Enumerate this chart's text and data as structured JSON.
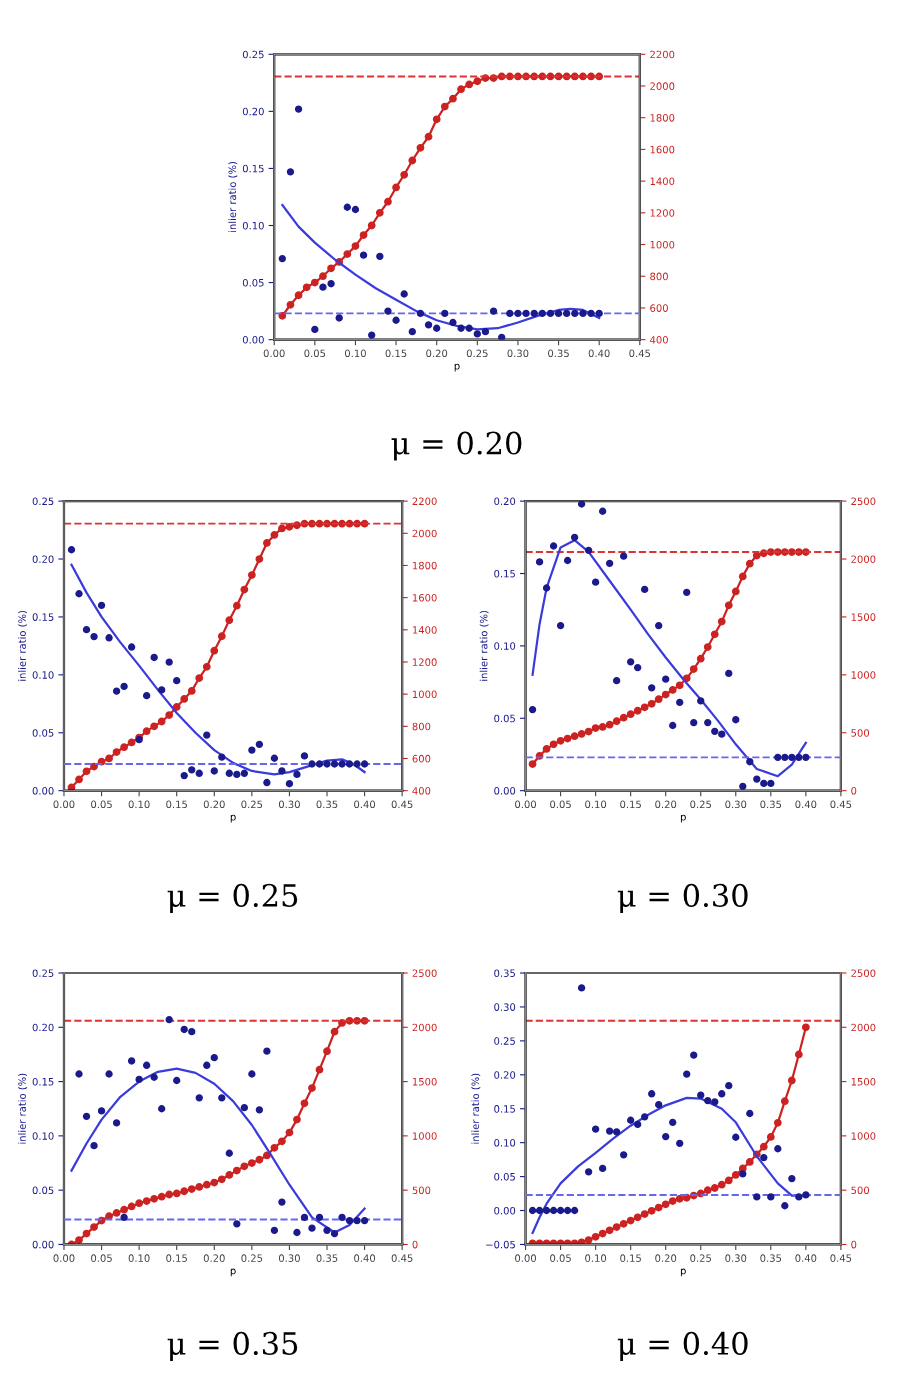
{
  "chart_data": [
    {
      "type": "scatter",
      "title": "μ = 0.20",
      "xlabel": "p",
      "ylabel": "inlier ratio (%)",
      "grid": false,
      "x": [
        0.01,
        0.02,
        0.03,
        0.04,
        0.05,
        0.06,
        0.07,
        0.08,
        0.09,
        0.1,
        0.11,
        0.12,
        0.13,
        0.14,
        0.15,
        0.16,
        0.17,
        0.18,
        0.19,
        0.2,
        0.21,
        0.22,
        0.23,
        0.24,
        0.25,
        0.26,
        0.27,
        0.28,
        0.29,
        0.3,
        0.31,
        0.32,
        0.33,
        0.34,
        0.35,
        0.36,
        0.37,
        0.38,
        0.39,
        0.4
      ],
      "xlim": [
        0,
        0.45
      ],
      "xticks": [
        {
          "value": 0,
          "label": "0.00"
        },
        {
          "value": 0.05,
          "label": "0.05"
        },
        {
          "value": 0.1,
          "label": "0.10"
        },
        {
          "value": 0.15,
          "label": "0.15"
        },
        {
          "value": 0.2,
          "label": "0.20"
        },
        {
          "value": 0.25,
          "label": "0.25"
        },
        {
          "value": 0.3,
          "label": "0.30"
        },
        {
          "value": 0.35,
          "label": "0.35"
        },
        {
          "value": 0.4,
          "label": "0.40"
        },
        {
          "value": 0.45,
          "label": "0.45"
        }
      ],
      "ylim": [
        0,
        0.25
      ],
      "yticks": [
        {
          "value": 0,
          "label": "0.00"
        },
        {
          "value": 0.05,
          "label": "0.05"
        },
        {
          "value": 0.1,
          "label": "0.10"
        },
        {
          "value": 0.15,
          "label": "0.15"
        },
        {
          "value": 0.2,
          "label": "0.20"
        },
        {
          "value": 0.25,
          "label": "0.25"
        }
      ],
      "y2lim": [
        400,
        2200
      ],
      "y2ticks": [
        400,
        600,
        800,
        1000,
        1200,
        1400,
        1600,
        1800,
        2000,
        2200
      ],
      "series": [
        {
          "color": "#1a1a8c",
          "marker": "circle",
          "values": [
            0.071,
            0.147,
            0.202,
            null,
            0.009,
            0.046,
            0.049,
            0.019,
            0.116,
            0.114,
            0.074,
            0.004,
            0.073,
            0.025,
            0.017,
            0.04,
            0.007,
            0.023,
            0.013,
            0.01,
            0.023,
            0.015,
            0.01,
            0.01,
            0.005,
            0.007,
            0.025,
            0.002,
            0.023,
            0.023,
            0.023,
            0.023,
            0.023,
            0.023,
            0.023,
            0.023,
            0.023,
            0.023,
            0.023,
            0.023
          ]
        },
        {
          "type": "line",
          "color": "#3b3bdb",
          "line_style": "solid",
          "x": [
            0.01,
            0.03,
            0.05,
            0.075,
            0.1,
            0.125,
            0.15,
            0.175,
            0.2,
            0.225,
            0.25,
            0.275,
            0.3,
            0.325,
            0.35,
            0.365,
            0.38,
            0.4
          ],
          "values": [
            0.118,
            0.099,
            0.085,
            0.07,
            0.057,
            0.045,
            0.035,
            0.025,
            0.017,
            0.012,
            0.009,
            0.01,
            0.015,
            0.021,
            0.026,
            0.027,
            0.026,
            0.019
          ]
        },
        {
          "type": "line",
          "axis": "y2",
          "color": "#cc2222",
          "marker": "circle",
          "line_style": "solid",
          "values": [
            550,
            620,
            680,
            730,
            760,
            800,
            850,
            890,
            940,
            990,
            1060,
            1120,
            1200,
            1270,
            1360,
            1440,
            1530,
            1610,
            1680,
            1790,
            1870,
            1920,
            1980,
            2010,
            2030,
            2050,
            2050,
            2060,
            2060,
            2060,
            2060,
            2060,
            2060,
            2060,
            2060,
            2060,
            2060,
            2060,
            2060,
            2060
          ]
        }
      ],
      "ref_lines": [
        {
          "axis": "y",
          "value": 0.023,
          "color": "#6666ee",
          "line_style": "dashed"
        },
        {
          "axis": "y2",
          "value": 2060,
          "color": "#dd3333",
          "line_style": "dashed"
        }
      ]
    },
    {
      "type": "scatter",
      "title": "μ = 0.25",
      "xlabel": "p",
      "ylabel": "inlier ratio (%)",
      "grid": false,
      "x": [
        0.01,
        0.02,
        0.03,
        0.04,
        0.05,
        0.06,
        0.07,
        0.08,
        0.09,
        0.1,
        0.11,
        0.12,
        0.13,
        0.14,
        0.15,
        0.16,
        0.17,
        0.18,
        0.19,
        0.2,
        0.21,
        0.22,
        0.23,
        0.24,
        0.25,
        0.26,
        0.27,
        0.28,
        0.29,
        0.3,
        0.31,
        0.32,
        0.33,
        0.34,
        0.35,
        0.36,
        0.37,
        0.38,
        0.39,
        0.4
      ],
      "xlim": [
        0,
        0.45
      ],
      "xticks": [
        {
          "value": 0,
          "label": "0.00"
        },
        {
          "value": 0.05,
          "label": "0.05"
        },
        {
          "value": 0.1,
          "label": "0.10"
        },
        {
          "value": 0.15,
          "label": "0.15"
        },
        {
          "value": 0.2,
          "label": "0.20"
        },
        {
          "value": 0.25,
          "label": "0.25"
        },
        {
          "value": 0.3,
          "label": "0.30"
        },
        {
          "value": 0.35,
          "label": "0.35"
        },
        {
          "value": 0.4,
          "label": "0.40"
        },
        {
          "value": 0.45,
          "label": "0.45"
        }
      ],
      "ylim": [
        0,
        0.25
      ],
      "yticks": [
        {
          "value": 0,
          "label": "0.00"
        },
        {
          "value": 0.05,
          "label": "0.05"
        },
        {
          "value": 0.1,
          "label": "0.10"
        },
        {
          "value": 0.15,
          "label": "0.15"
        },
        {
          "value": 0.2,
          "label": "0.20"
        },
        {
          "value": 0.25,
          "label": "0.25"
        }
      ],
      "y2lim": [
        400,
        2200
      ],
      "y2ticks": [
        400,
        600,
        800,
        1000,
        1200,
        1400,
        1600,
        1800,
        2000,
        2200
      ],
      "series": [
        {
          "color": "#1a1a8c",
          "marker": "circle",
          "values": [
            0.208,
            0.17,
            0.139,
            0.133,
            0.16,
            0.132,
            0.086,
            0.09,
            0.124,
            0.044,
            0.082,
            0.115,
            0.087,
            0.111,
            0.095,
            0.013,
            0.018,
            0.015,
            0.048,
            0.017,
            0.029,
            0.015,
            0.014,
            0.015,
            0.035,
            0.04,
            0.007,
            0.028,
            0.017,
            0.006,
            0.014,
            0.03,
            0.023,
            0.023,
            0.023,
            0.023,
            0.023,
            0.023,
            0.023,
            0.023
          ]
        },
        {
          "type": "line",
          "color": "#3b3bdb",
          "line_style": "solid",
          "x": [
            0.01,
            0.03,
            0.05,
            0.075,
            0.1,
            0.125,
            0.15,
            0.175,
            0.2,
            0.225,
            0.25,
            0.28,
            0.3,
            0.325,
            0.35,
            0.37,
            0.385,
            0.4
          ],
          "values": [
            0.195,
            0.171,
            0.15,
            0.128,
            0.108,
            0.087,
            0.067,
            0.05,
            0.035,
            0.024,
            0.017,
            0.014,
            0.016,
            0.021,
            0.026,
            0.027,
            0.023,
            0.016
          ]
        },
        {
          "type": "line",
          "axis": "y2",
          "color": "#cc2222",
          "marker": "circle",
          "line_style": "solid",
          "values": [
            420,
            470,
            520,
            550,
            580,
            600,
            640,
            670,
            700,
            730,
            770,
            800,
            830,
            870,
            920,
            970,
            1020,
            1100,
            1170,
            1270,
            1360,
            1460,
            1550,
            1650,
            1740,
            1840,
            1940,
            1990,
            2030,
            2040,
            2050,
            2060,
            2060,
            2060,
            2060,
            2060,
            2060,
            2060,
            2060,
            2060
          ]
        }
      ],
      "ref_lines": [
        {
          "axis": "y",
          "value": 0.023,
          "color": "#6666ee",
          "line_style": "dashed"
        },
        {
          "axis": "y2",
          "value": 2060,
          "color": "#dd3333",
          "line_style": "dashed"
        }
      ]
    },
    {
      "type": "scatter",
      "title": "μ = 0.30",
      "xlabel": "p",
      "ylabel": "inlier ratio (%)",
      "grid": false,
      "x": [
        0.01,
        0.02,
        0.03,
        0.04,
        0.05,
        0.06,
        0.07,
        0.08,
        0.09,
        0.1,
        0.11,
        0.12,
        0.13,
        0.14,
        0.15,
        0.16,
        0.17,
        0.18,
        0.19,
        0.2,
        0.21,
        0.22,
        0.23,
        0.24,
        0.25,
        0.26,
        0.27,
        0.28,
        0.29,
        0.3,
        0.31,
        0.32,
        0.33,
        0.34,
        0.35,
        0.36,
        0.37,
        0.38,
        0.39,
        0.4
      ],
      "xlim": [
        0,
        0.45
      ],
      "xticks": [
        {
          "value": 0,
          "label": "0.00"
        },
        {
          "value": 0.05,
          "label": "0.05"
        },
        {
          "value": 0.1,
          "label": "0.10"
        },
        {
          "value": 0.15,
          "label": "0.15"
        },
        {
          "value": 0.2,
          "label": "0.20"
        },
        {
          "value": 0.25,
          "label": "0.25"
        },
        {
          "value": 0.3,
          "label": "0.30"
        },
        {
          "value": 0.35,
          "label": "0.35"
        },
        {
          "value": 0.4,
          "label": "0.40"
        },
        {
          "value": 0.45,
          "label": "0.45"
        }
      ],
      "ylim": [
        0,
        0.2
      ],
      "yticks": [
        {
          "value": 0,
          "label": "0.00"
        },
        {
          "value": 0.05,
          "label": "0.05"
        },
        {
          "value": 0.1,
          "label": "0.10"
        },
        {
          "value": 0.15,
          "label": "0.15"
        },
        {
          "value": 0.2,
          "label": "0.20"
        }
      ],
      "y2lim": [
        0,
        2500
      ],
      "y2ticks": [
        0,
        500,
        1000,
        1500,
        2000,
        2500
      ],
      "series": [
        {
          "color": "#1a1a8c",
          "marker": "circle",
          "values": [
            0.056,
            0.158,
            0.14,
            0.169,
            0.114,
            0.159,
            0.175,
            0.198,
            0.166,
            0.144,
            0.193,
            0.157,
            0.076,
            0.162,
            0.089,
            0.085,
            0.139,
            0.071,
            0.114,
            0.077,
            0.045,
            0.061,
            0.137,
            0.047,
            0.062,
            0.047,
            0.041,
            0.039,
            0.081,
            0.049,
            0.003,
            0.02,
            0.008,
            0.005,
            0.005,
            0.023,
            0.023,
            0.023,
            0.023,
            0.023
          ]
        },
        {
          "type": "line",
          "color": "#3b3bdb",
          "line_style": "solid",
          "x": [
            0.01,
            0.02,
            0.03,
            0.05,
            0.07,
            0.09,
            0.12,
            0.15,
            0.175,
            0.2,
            0.225,
            0.25,
            0.275,
            0.3,
            0.33,
            0.36,
            0.38,
            0.4
          ],
          "values": [
            0.08,
            0.115,
            0.14,
            0.168,
            0.173,
            0.165,
            0.145,
            0.125,
            0.108,
            0.092,
            0.077,
            0.063,
            0.048,
            0.032,
            0.015,
            0.01,
            0.018,
            0.033
          ]
        },
        {
          "type": "line",
          "axis": "y2",
          "color": "#cc2222",
          "marker": "circle",
          "line_style": "solid",
          "values": [
            230,
            300,
            360,
            400,
            430,
            450,
            470,
            490,
            510,
            540,
            550,
            570,
            600,
            630,
            660,
            690,
            720,
            750,
            790,
            830,
            870,
            910,
            970,
            1050,
            1140,
            1240,
            1350,
            1460,
            1600,
            1720,
            1850,
            1960,
            2030,
            2050,
            2060,
            2060,
            2060,
            2060,
            2060,
            2060
          ]
        }
      ],
      "ref_lines": [
        {
          "axis": "y",
          "value": 0.023,
          "color": "#6666ee",
          "line_style": "dashed"
        },
        {
          "axis": "y2",
          "value": 2060,
          "color": "#dd3333",
          "line_style": "dashed"
        }
      ]
    },
    {
      "type": "scatter",
      "title": "μ = 0.35",
      "xlabel": "p",
      "ylabel": "inlier ratio (%)",
      "grid": false,
      "x": [
        0.01,
        0.02,
        0.03,
        0.04,
        0.05,
        0.06,
        0.07,
        0.08,
        0.09,
        0.1,
        0.11,
        0.12,
        0.13,
        0.14,
        0.15,
        0.16,
        0.17,
        0.18,
        0.19,
        0.2,
        0.21,
        0.22,
        0.23,
        0.24,
        0.25,
        0.26,
        0.27,
        0.28,
        0.29,
        0.3,
        0.31,
        0.32,
        0.33,
        0.34,
        0.35,
        0.36,
        0.37,
        0.38,
        0.39,
        0.4
      ],
      "xlim": [
        0,
        0.45
      ],
      "xticks": [
        {
          "value": 0,
          "label": "0.00"
        },
        {
          "value": 0.05,
          "label": "0.05"
        },
        {
          "value": 0.1,
          "label": "0.10"
        },
        {
          "value": 0.15,
          "label": "0.15"
        },
        {
          "value": 0.2,
          "label": "0.20"
        },
        {
          "value": 0.25,
          "label": "0.25"
        },
        {
          "value": 0.3,
          "label": "0.30"
        },
        {
          "value": 0.35,
          "label": "0.35"
        },
        {
          "value": 0.4,
          "label": "0.40"
        },
        {
          "value": 0.45,
          "label": "0.45"
        }
      ],
      "ylim": [
        0,
        0.25
      ],
      "yticks": [
        {
          "value": 0,
          "label": "0.00"
        },
        {
          "value": 0.05,
          "label": "0.05"
        },
        {
          "value": 0.1,
          "label": "0.10"
        },
        {
          "value": 0.15,
          "label": "0.15"
        },
        {
          "value": 0.2,
          "label": "0.20"
        },
        {
          "value": 0.25,
          "label": "0.25"
        }
      ],
      "y2lim": [
        0,
        2500
      ],
      "y2ticks": [
        0,
        500,
        1000,
        1500,
        2000,
        2500
      ],
      "series": [
        {
          "color": "#1a1a8c",
          "marker": "circle",
          "values": [
            null,
            0.157,
            0.118,
            0.091,
            0.123,
            0.157,
            0.112,
            0.025,
            0.169,
            0.152,
            0.165,
            0.154,
            0.125,
            0.207,
            0.151,
            0.198,
            0.196,
            0.135,
            0.165,
            0.172,
            0.135,
            0.084,
            0.019,
            0.126,
            0.157,
            0.124,
            0.178,
            0.013,
            0.039,
            null,
            0.011,
            0.025,
            0.015,
            0.025,
            0.013,
            0.01,
            0.025,
            0.022,
            0.022,
            0.022
          ]
        },
        {
          "type": "line",
          "color": "#3b3bdb",
          "line_style": "solid",
          "x": [
            0.01,
            0.03,
            0.05,
            0.075,
            0.1,
            0.125,
            0.15,
            0.175,
            0.2,
            0.225,
            0.25,
            0.275,
            0.3,
            0.33,
            0.36,
            0.38,
            0.4
          ],
          "values": [
            0.068,
            0.093,
            0.115,
            0.136,
            0.15,
            0.159,
            0.162,
            0.158,
            0.148,
            0.132,
            0.11,
            0.083,
            0.055,
            0.025,
            0.011,
            0.018,
            0.033
          ]
        },
        {
          "type": "line",
          "axis": "y2",
          "color": "#cc2222",
          "marker": "circle",
          "line_style": "solid",
          "values": [
            0,
            40,
            100,
            160,
            220,
            260,
            290,
            320,
            350,
            380,
            400,
            420,
            440,
            460,
            470,
            490,
            510,
            530,
            550,
            570,
            600,
            640,
            680,
            720,
            750,
            780,
            820,
            890,
            950,
            1030,
            1150,
            1300,
            1440,
            1610,
            1780,
            1960,
            2040,
            2060,
            2060,
            2060
          ]
        }
      ],
      "ref_lines": [
        {
          "axis": "y",
          "value": 0.023,
          "color": "#6666ee",
          "line_style": "dashed"
        },
        {
          "axis": "y2",
          "value": 2060,
          "color": "#dd3333",
          "line_style": "dashed"
        }
      ]
    },
    {
      "type": "scatter",
      "title": "μ = 0.40",
      "xlabel": "p",
      "ylabel": "inlier ratio (%)",
      "grid": false,
      "x": [
        0.01,
        0.02,
        0.03,
        0.04,
        0.05,
        0.06,
        0.07,
        0.08,
        0.09,
        0.1,
        0.11,
        0.12,
        0.13,
        0.14,
        0.15,
        0.16,
        0.17,
        0.18,
        0.19,
        0.2,
        0.21,
        0.22,
        0.23,
        0.24,
        0.25,
        0.26,
        0.27,
        0.28,
        0.29,
        0.3,
        0.31,
        0.32,
        0.33,
        0.34,
        0.35,
        0.36,
        0.37,
        0.38,
        0.39,
        0.4
      ],
      "xlim": [
        0,
        0.45
      ],
      "xticks": [
        {
          "value": 0,
          "label": "0.00"
        },
        {
          "value": 0.05,
          "label": "0.05"
        },
        {
          "value": 0.1,
          "label": "0.10"
        },
        {
          "value": 0.15,
          "label": "0.15"
        },
        {
          "value": 0.2,
          "label": "0.20"
        },
        {
          "value": 0.25,
          "label": "0.25"
        },
        {
          "value": 0.3,
          "label": "0.30"
        },
        {
          "value": 0.35,
          "label": "0.35"
        },
        {
          "value": 0.4,
          "label": "0.40"
        },
        {
          "value": 0.45,
          "label": "0.45"
        }
      ],
      "ylim": [
        -0.05,
        0.35
      ],
      "yticks": [
        {
          "value": -0.05,
          "label": "−0.05"
        },
        {
          "value": 0,
          "label": "0.00"
        },
        {
          "value": 0.05,
          "label": "0.05"
        },
        {
          "value": 0.1,
          "label": "0.10"
        },
        {
          "value": 0.15,
          "label": "0.15"
        },
        {
          "value": 0.2,
          "label": "0.20"
        },
        {
          "value": 0.25,
          "label": "0.25"
        },
        {
          "value": 0.3,
          "label": "0.30"
        },
        {
          "value": 0.35,
          "label": "0.35"
        }
      ],
      "y2lim": [
        0,
        2500
      ],
      "y2ticks": [
        0,
        500,
        1000,
        1500,
        2000,
        2500
      ],
      "series": [
        {
          "color": "#1a1a8c",
          "marker": "circle",
          "values": [
            0,
            0,
            0,
            0,
            0,
            0,
            0,
            0.328,
            0.057,
            0.12,
            0.062,
            0.117,
            0.116,
            0.082,
            0.133,
            0.127,
            0.138,
            0.172,
            0.156,
            0.109,
            0.13,
            0.099,
            0.201,
            0.229,
            0.17,
            0.162,
            0.16,
            0.172,
            0.184,
            0.108,
            0.054,
            0.143,
            0.02,
            0.078,
            0.02,
            0.091,
            0.007,
            0.047,
            0.02,
            0.023
          ]
        },
        {
          "type": "line",
          "color": "#3b3bdb",
          "line_style": "solid",
          "x": [
            0.01,
            0.02,
            0.03,
            0.05,
            0.075,
            0.1,
            0.125,
            0.15,
            0.175,
            0.2,
            0.23,
            0.25,
            0.28,
            0.3,
            0.33,
            0.36,
            0.38,
            0.4
          ],
          "values": [
            -0.033,
            -0.01,
            0.01,
            0.04,
            0.065,
            0.085,
            0.106,
            0.125,
            0.141,
            0.155,
            0.166,
            0.165,
            0.15,
            0.13,
            0.08,
            0.04,
            0.022,
            0.022
          ]
        },
        {
          "type": "line",
          "axis": "y2",
          "color": "#cc2222",
          "marker": "circle",
          "line_style": "solid",
          "values": [
            10,
            10,
            10,
            10,
            10,
            10,
            10,
            20,
            40,
            70,
            100,
            130,
            160,
            190,
            220,
            250,
            280,
            310,
            340,
            370,
            400,
            420,
            430,
            450,
            470,
            500,
            520,
            550,
            590,
            640,
            700,
            760,
            830,
            900,
            990,
            1120,
            1320,
            1510,
            1750,
            2000
          ]
        }
      ],
      "ref_lines": [
        {
          "axis": "y",
          "value": 0.023,
          "color": "#6666ee",
          "line_style": "dashed"
        },
        {
          "axis": "y2",
          "value": 2060,
          "color": "#dd3333",
          "line_style": "dashed"
        }
      ]
    }
  ]
}
